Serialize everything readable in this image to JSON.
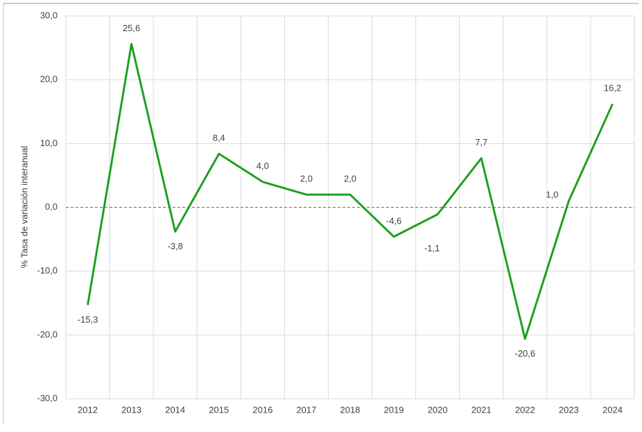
{
  "chart_data": {
    "type": "line",
    "y_label": "% Tasa de variación interanual",
    "categories": [
      "2012",
      "2013",
      "2014",
      "2015",
      "2016",
      "2017",
      "2018",
      "2019",
      "2020",
      "2021",
      "2022",
      "2023",
      "2024"
    ],
    "series": [
      {
        "name": "% Tasa de variación interanual",
        "color": "#1ea01e",
        "values": [
          -15.3,
          25.6,
          -3.8,
          8.4,
          4.0,
          2.0,
          2.0,
          -4.6,
          -1.1,
          7.7,
          -20.6,
          1.0,
          16.2
        ],
        "value_labels": [
          "-15,3",
          "25,6",
          "-3,8",
          "8,4",
          "4,0",
          "2,0",
          "2,0",
          "-4,6",
          "-1,1",
          "7,7",
          "-20,6",
          "1,0",
          "16,2"
        ]
      }
    ],
    "ylim": [
      -30,
      30
    ],
    "yticks": [
      {
        "value": -30,
        "label": "-30,0"
      },
      {
        "value": -20,
        "label": "-20,0"
      },
      {
        "value": -10,
        "label": "-10,0"
      },
      {
        "value": 0,
        "label": "0,0"
      },
      {
        "value": 10,
        "label": "10,0"
      },
      {
        "value": 20,
        "label": "20,0"
      },
      {
        "value": 30,
        "label": "30,0"
      }
    ],
    "grid": true,
    "zero_line_color": "#e03a3a"
  }
}
